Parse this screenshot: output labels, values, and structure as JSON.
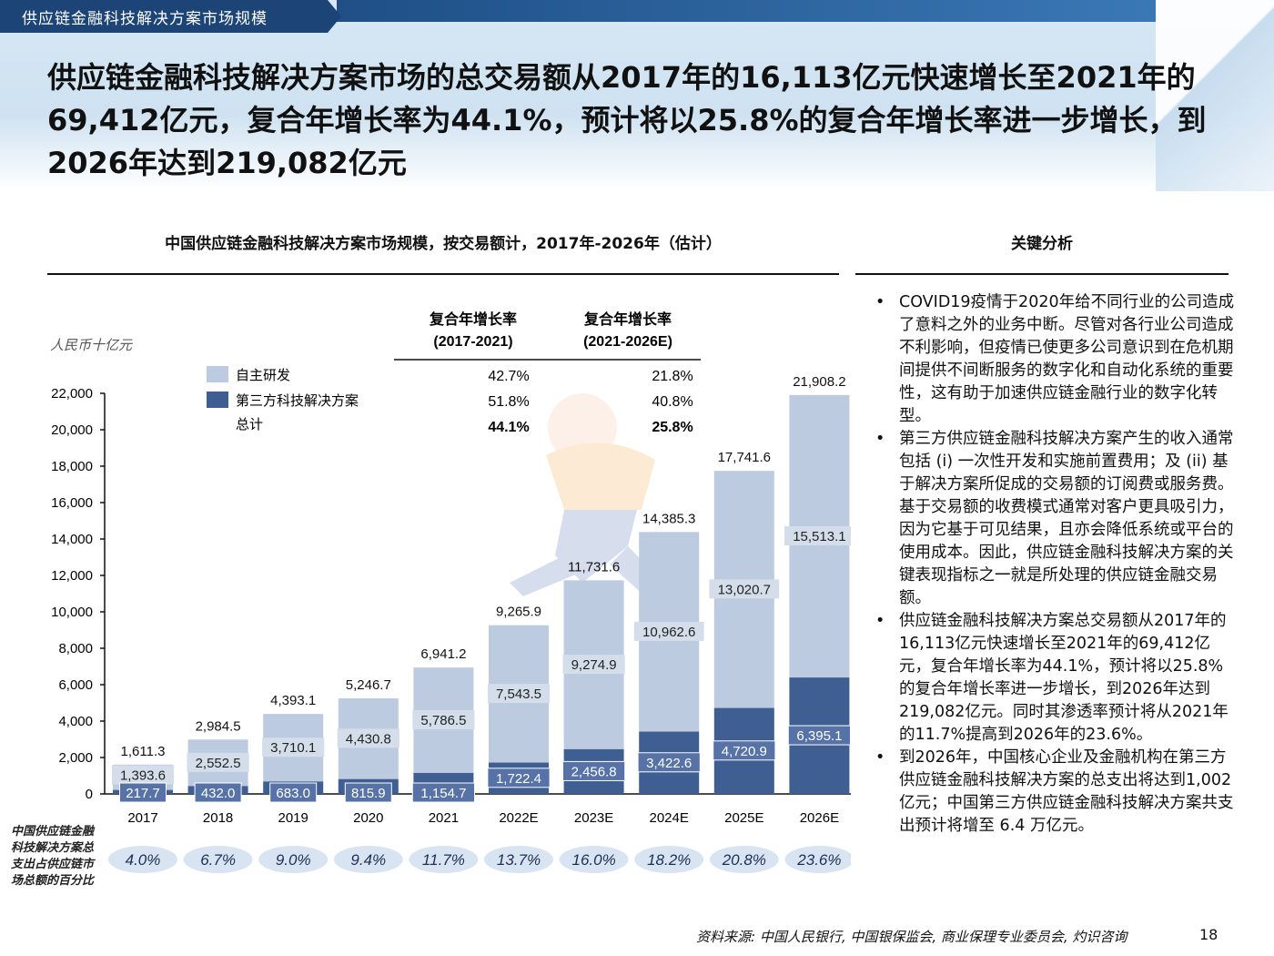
{
  "header": {
    "tab_title": "供应链金融科技解决方案市场规模",
    "headline": "供应链金融科技解决方案市场的总交易额从2017年的16,113亿元快速增长至2021年的69,412亿元，复合年增长率为44.1%，预计将以25.8%的复合年增长率进一步增长，到 2026年达到219,082亿元"
  },
  "analysis": {
    "title": "关键分析",
    "bullets": [
      "COVID19疫情于2020年给不同行业的公司造成了意料之外的业务中断。尽管对各行业公司造成不利影响，但疫情已使更多公司意识到在危机期间提供不间断服务的数字化和自动化系统的重要性，这有助于加速供应链金融行业的数字化转型。",
      "第三方供应链金融科技解决方案产生的收入通常包括 (i) 一次性开发和实施前置费用；及 (ii) 基于解决方案所促成的交易额的订阅费或服务费。基于交易额的收费模式通常对客户更具吸引力，因为它基于可见结果，且亦会降低系统或平台的使用成本。因此，供应链金融科技解决方案的关键表现指标之一就是所处理的供应链金融交易额。",
      "供应链金融科技解决方案总交易额从2017年的16,113亿元快速增长至2021年的69,412亿元，复合年增长率为44.1%，预计将以25.8%的复合年增长率进一步增长，到2026年达到219,082亿元。同时其渗透率预计将从2021年的11.7%提高到2026年的23.6%。",
      "到2026年，中国核心企业及金融机构在第三方供应链金融科技解决方案的总支出将达到1,002亿元；中国第三方供应链金融科技解决方案共支出预计将增至 6.4 万亿元。"
    ]
  },
  "footer": {
    "source": "资料来源: 中国人民银行, 中国银保监会, 商业保理专业委员会, 灼识咨询",
    "page": "18",
    "side_note": "中国供应链金融科技解决方案总支出占供应链市场总额的百分比"
  },
  "colors": {
    "light_bar": "#bccbe0",
    "dark_bar": "#3f5f93",
    "pill": "#d8e4f2",
    "header_tab": "#1c4476"
  },
  "chart_data": {
    "type": "bar",
    "stacked": true,
    "title": "中国供应链金融科技解决方案市场规模，按交易额计，2017年-2026年（估计）",
    "ylabel": "人民币十亿元",
    "ylim": [
      0,
      22000
    ],
    "yticks": [
      "0",
      "2,000",
      "4,000",
      "6,000",
      "8,000",
      "10,000",
      "12,000",
      "14,000",
      "16,000",
      "18,000",
      "20,000",
      "22,000"
    ],
    "categories": [
      "2017",
      "2018",
      "2019",
      "2020",
      "2021",
      "2022E",
      "2023E",
      "2024E",
      "2025E",
      "2026E"
    ],
    "series": [
      {
        "name": "第三方科技解决方案",
        "values": [
          217.7,
          432.0,
          683.0,
          815.9,
          1154.7,
          1722.4,
          2456.8,
          3422.6,
          4720.9,
          6395.1
        ],
        "labels": [
          "217.7",
          "432.0",
          "683.0",
          "815.9",
          "1,154.7",
          "1,722.4",
          "2,456.8",
          "3,422.6",
          "4,720.9",
          "6,395.1"
        ]
      },
      {
        "name": "自主研发",
        "values": [
          1393.6,
          2552.5,
          3710.1,
          4430.8,
          5786.5,
          7543.5,
          9274.9,
          10962.6,
          13020.7,
          15513.1
        ],
        "labels": [
          "1,393.6",
          "2,552.5",
          "3,710.1",
          "4,430.8",
          "5,786.5",
          "7,543.5",
          "9,274.9",
          "10,962.6",
          "13,020.7",
          "15,513.1"
        ]
      }
    ],
    "totals": [
      1611.3,
      2984.5,
      4393.1,
      5246.7,
      6941.2,
      9265.9,
      11731.6,
      14385.3,
      17741.6,
      21908.2
    ],
    "total_labels": [
      "1,611.3",
      "2,984.5",
      "4,393.1",
      "5,246.7",
      "6,941.2",
      "9,265.9",
      "11,731.6",
      "14,385.3",
      "17,741.6",
      "21,908.2"
    ],
    "legend": [
      "自主研发",
      "第三方科技解决方案",
      "总计"
    ],
    "cagr": {
      "headers": [
        [
          "复合年增长率",
          "(2017-2021)"
        ],
        [
          "复合年增长率",
          "(2021-2026E)"
        ]
      ],
      "rows": [
        [
          "42.7%",
          "21.8%"
        ],
        [
          "51.8%",
          "40.8%"
        ],
        [
          "44.1%",
          "25.8%"
        ]
      ]
    },
    "penetration": [
      "4.0%",
      "6.7%",
      "9.0%",
      "9.4%",
      "11.7%",
      "13.7%",
      "16.0%",
      "18.2%",
      "20.8%",
      "23.6%"
    ]
  }
}
